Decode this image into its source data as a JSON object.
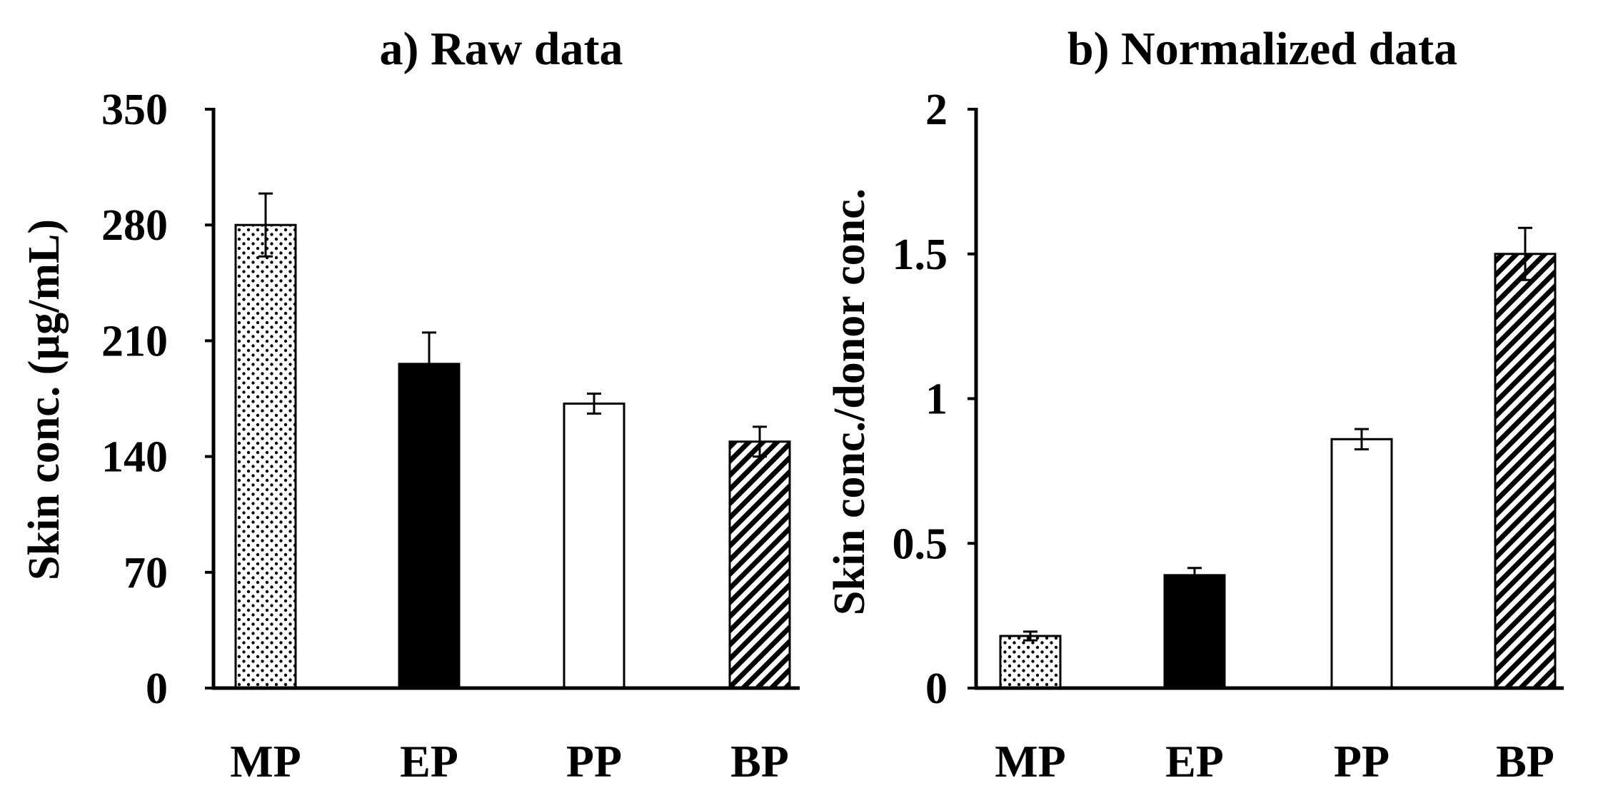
{
  "colors": {
    "ink": "#000000",
    "paper": "#ffffff"
  },
  "chart_data": [
    {
      "type": "bar",
      "title": "a) Raw data",
      "xlabel": "",
      "ylabel": "Skin conc. (µg/mL)",
      "categories": [
        "MP",
        "EP",
        "PP",
        "BP"
      ],
      "values": [
        280,
        196,
        172,
        149
      ],
      "errors": [
        19,
        19,
        6,
        9
      ],
      "patterns": [
        "dots",
        "solid",
        "empty",
        "hatch"
      ],
      "ylim": [
        0,
        350
      ],
      "yticks": [
        0,
        70,
        140,
        210,
        280,
        350
      ],
      "ytick_labels": [
        "0",
        "70",
        "140",
        "210",
        "280",
        "350"
      ],
      "grid": false
    },
    {
      "type": "bar",
      "title": "b) Normalized data",
      "xlabel": "",
      "ylabel": "Skin conc./donor conc.",
      "categories": [
        "MP",
        "EP",
        "PP",
        "BP"
      ],
      "values": [
        0.18,
        0.39,
        0.86,
        1.5
      ],
      "errors": [
        0.015,
        0.025,
        0.035,
        0.09
      ],
      "patterns": [
        "dots",
        "solid",
        "empty",
        "hatch"
      ],
      "ylim": [
        0,
        2
      ],
      "yticks": [
        0,
        0.5,
        1,
        1.5,
        2
      ],
      "ytick_labels": [
        "0",
        "0.5",
        "1",
        "1.5",
        "2"
      ],
      "grid": false
    }
  ]
}
